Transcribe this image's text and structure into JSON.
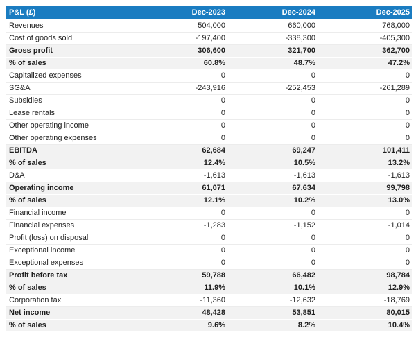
{
  "colors": {
    "header_bg": "#1a7cc1",
    "header_text": "#ffffff",
    "emphasis_row_bg": "#f2f2f2",
    "body_text": "#1f1f1f",
    "row_border": "#ececec"
  },
  "chart_data": {
    "type": "table",
    "title": "P&L (£)",
    "columns": [
      "Dec-2023",
      "Dec-2024",
      "Dec-2025"
    ],
    "rows": [
      {
        "label": "Revenues",
        "values": [
          "504,000",
          "660,000",
          "768,000"
        ],
        "emphasis": false
      },
      {
        "label": "Cost of goods sold",
        "values": [
          "-197,400",
          "-338,300",
          "-405,300"
        ],
        "emphasis": false
      },
      {
        "label": "Gross profit",
        "values": [
          "306,600",
          "321,700",
          "362,700"
        ],
        "emphasis": true
      },
      {
        "label": "% of sales",
        "values": [
          "60.8%",
          "48.7%",
          "47.2%"
        ],
        "emphasis": true
      },
      {
        "label": "Capitalized expenses",
        "values": [
          "0",
          "0",
          "0"
        ],
        "emphasis": false
      },
      {
        "label": "SG&A",
        "values": [
          "-243,916",
          "-252,453",
          "-261,289"
        ],
        "emphasis": false
      },
      {
        "label": "Subsidies",
        "values": [
          "0",
          "0",
          "0"
        ],
        "emphasis": false
      },
      {
        "label": "Lease rentals",
        "values": [
          "0",
          "0",
          "0"
        ],
        "emphasis": false
      },
      {
        "label": "Other operating income",
        "values": [
          "0",
          "0",
          "0"
        ],
        "emphasis": false
      },
      {
        "label": "Other operating expenses",
        "values": [
          "0",
          "0",
          "0"
        ],
        "emphasis": false
      },
      {
        "label": "EBITDA",
        "values": [
          "62,684",
          "69,247",
          "101,411"
        ],
        "emphasis": true
      },
      {
        "label": "% of sales",
        "values": [
          "12.4%",
          "10.5%",
          "13.2%"
        ],
        "emphasis": true
      },
      {
        "label": "D&A",
        "values": [
          "-1,613",
          "-1,613",
          "-1,613"
        ],
        "emphasis": false
      },
      {
        "label": "Operating income",
        "values": [
          "61,071",
          "67,634",
          "99,798"
        ],
        "emphasis": true
      },
      {
        "label": "% of sales",
        "values": [
          "12.1%",
          "10.2%",
          "13.0%"
        ],
        "emphasis": true
      },
      {
        "label": "Financial income",
        "values": [
          "0",
          "0",
          "0"
        ],
        "emphasis": false
      },
      {
        "label": "Financial expenses",
        "values": [
          "-1,283",
          "-1,152",
          "-1,014"
        ],
        "emphasis": false
      },
      {
        "label": "Profit (loss) on disposal",
        "values": [
          "0",
          "0",
          "0"
        ],
        "emphasis": false
      },
      {
        "label": "Exceptional income",
        "values": [
          "0",
          "0",
          "0"
        ],
        "emphasis": false
      },
      {
        "label": "Exceptional expenses",
        "values": [
          "0",
          "0",
          "0"
        ],
        "emphasis": false
      },
      {
        "label": "Profit before tax",
        "values": [
          "59,788",
          "66,482",
          "98,784"
        ],
        "emphasis": true
      },
      {
        "label": "% of sales",
        "values": [
          "11.9%",
          "10.1%",
          "12.9%"
        ],
        "emphasis": true
      },
      {
        "label": "Corporation tax",
        "values": [
          "-11,360",
          "-12,632",
          "-18,769"
        ],
        "emphasis": false
      },
      {
        "label": "Net income",
        "values": [
          "48,428",
          "53,851",
          "80,015"
        ],
        "emphasis": true
      },
      {
        "label": "% of sales",
        "values": [
          "9.6%",
          "8.2%",
          "10.4%"
        ],
        "emphasis": true
      }
    ]
  }
}
